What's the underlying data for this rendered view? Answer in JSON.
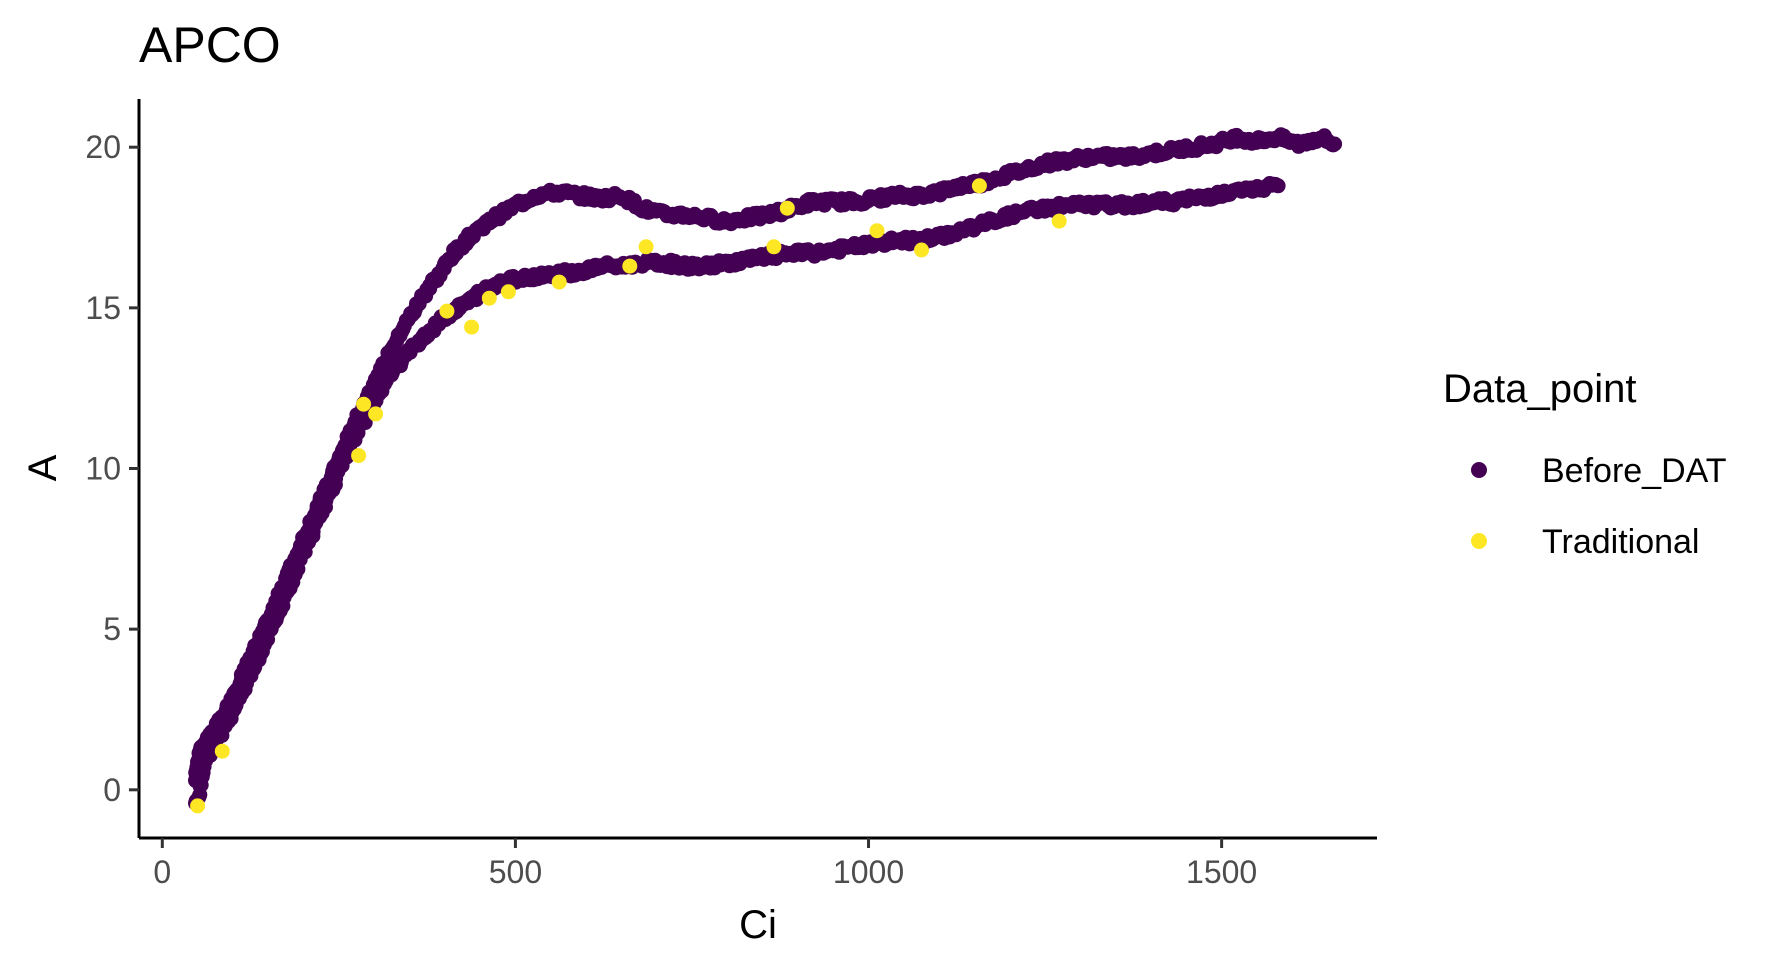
{
  "chart_data": {
    "type": "scatter",
    "title": "APCO",
    "xlabel": "Ci",
    "ylabel": "A",
    "xlim": [
      -33,
      1720
    ],
    "ylim": [
      -1.5,
      21.5
    ],
    "x_ticks": [
      0,
      500,
      1000,
      1500
    ],
    "y_ticks": [
      0,
      5,
      10,
      15,
      20
    ],
    "grid": false,
    "legend_position": "right",
    "legend_title": "Data_point",
    "colors": {
      "Before_DAT": "#440154",
      "Traditional": "#fde725"
    },
    "series": [
      {
        "name": "Before_DAT",
        "color": "#440154",
        "segments": [
          {
            "x": [
              48,
              50,
              55,
              62,
              72,
              85,
              100,
              115,
              130,
              150,
              170,
              190,
              210,
              230,
              250,
              270,
              290,
              310,
              330,
              350,
              370,
              390,
              410,
              430,
              450,
              470,
              500,
              530,
              560,
              590,
              620,
              650,
              680,
              710,
              740,
              770,
              800,
              830,
              860,
              890,
              920,
              950,
              980,
              1010,
              1040,
              1070,
              1100,
              1130,
              1160,
              1190,
              1220,
              1250,
              1280,
              1310,
              1340,
              1370,
              1400,
              1430,
              1460,
              1490,
              1520,
              1550,
              1580,
              1610,
              1640,
              1660
            ],
            "y": [
              0.3,
              0.8,
              1.2,
              1.5,
              1.8,
              2.2,
              2.9,
              3.6,
              4.3,
              5.3,
              6.3,
              7.3,
              8.3,
              9.3,
              10.3,
              11.3,
              12.2,
              13.1,
              13.9,
              14.7,
              15.4,
              16.0,
              16.6,
              17.1,
              17.5,
              17.8,
              18.2,
              18.5,
              18.6,
              18.5,
              18.4,
              18.5,
              18.1,
              17.9,
              17.9,
              17.8,
              17.7,
              17.8,
              17.9,
              18.1,
              18.3,
              18.3,
              18.3,
              18.4,
              18.5,
              18.5,
              18.6,
              18.8,
              18.9,
              19.1,
              19.3,
              19.5,
              19.6,
              19.7,
              19.7,
              19.7,
              19.8,
              19.9,
              20.0,
              20.1,
              20.3,
              20.2,
              20.3,
              20.1,
              20.3,
              20.1
            ]
          },
          {
            "x": [
              48,
              60,
              80,
              100,
              120,
              140,
              160,
              180,
              200,
              220,
              240,
              260,
              280,
              300,
              320,
              340,
              360,
              380,
              400,
              420,
              440,
              460,
              480,
              500,
              530,
              560,
              590,
              620,
              650,
              680,
              710,
              740,
              770,
              800,
              830,
              860,
              890,
              920,
              950,
              980,
              1010,
              1040,
              1070,
              1100,
              1130,
              1160,
              1190,
              1220,
              1250,
              1280,
              1310,
              1340,
              1370,
              1400,
              1430,
              1460,
              1490,
              1520,
              1550,
              1580
            ],
            "y": [
              -0.5,
              0.9,
              1.6,
              2.5,
              3.4,
              4.3,
              5.3,
              6.3,
              7.4,
              8.4,
              9.4,
              10.4,
              11.3,
              12.1,
              12.9,
              13.4,
              13.9,
              14.3,
              14.7,
              15.0,
              15.3,
              15.6,
              15.8,
              15.9,
              16.0,
              16.1,
              16.1,
              16.3,
              16.3,
              16.4,
              16.4,
              16.3,
              16.3,
              16.4,
              16.5,
              16.6,
              16.7,
              16.7,
              16.8,
              16.9,
              17.0,
              17.1,
              17.1,
              17.2,
              17.4,
              17.6,
              17.8,
              18.0,
              18.1,
              18.2,
              18.2,
              18.2,
              18.2,
              18.3,
              18.3,
              18.4,
              18.5,
              18.6,
              18.7,
              18.8
            ]
          }
        ]
      },
      {
        "name": "Traditional",
        "color": "#fde725",
        "x": [
          50,
          85,
          278,
          285,
          302,
          403,
          438,
          463,
          490,
          562,
          662,
          685,
          866,
          885,
          1012,
          1075,
          1157,
          1270
        ],
        "y": [
          -0.5,
          1.2,
          10.4,
          12.0,
          11.7,
          14.9,
          14.4,
          15.3,
          15.5,
          15.8,
          16.3,
          16.9,
          16.9,
          18.1,
          17.4,
          16.8,
          18.8,
          17.7
        ]
      }
    ]
  }
}
